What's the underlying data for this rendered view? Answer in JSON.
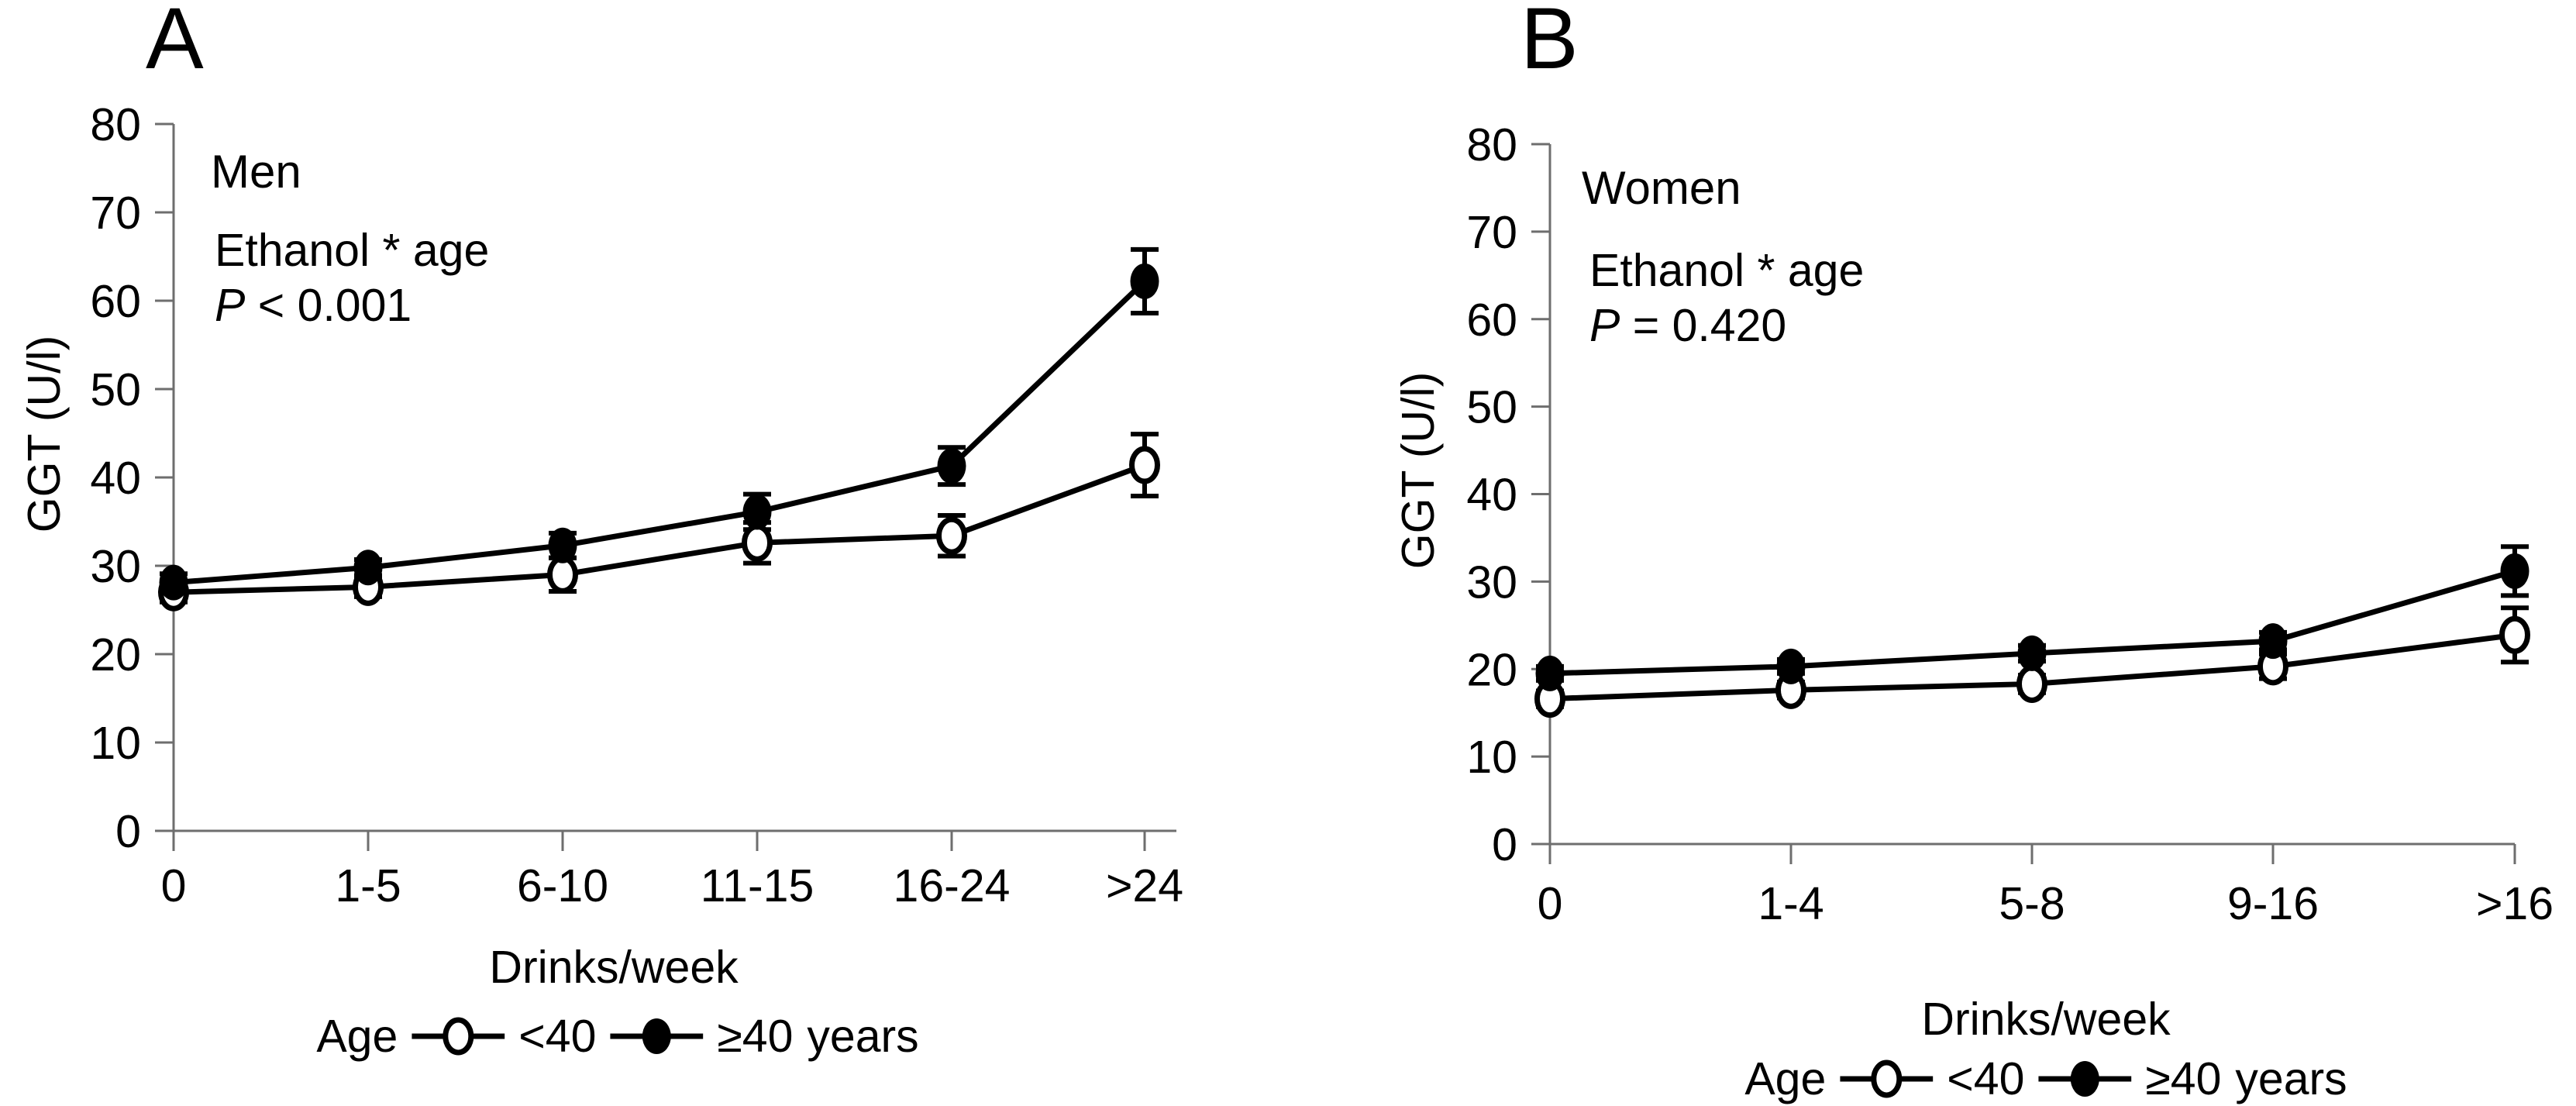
{
  "figure": {
    "background": "#ffffff",
    "axis_color": "#6e6e6e",
    "data_color": "#000000"
  },
  "legend": {
    "prefix": "Age",
    "item1_label": "<40",
    "item1_marker": "open-circle-icon",
    "item2_label": "≥40",
    "item2_marker": "filled-circle-icon",
    "suffix": "years"
  },
  "chart_data": [
    {
      "type": "line",
      "panel": "A",
      "group_label": "Men",
      "interaction_label": "Ethanol * age",
      "p_symbol": "P",
      "p_rest": " < 0.001",
      "xlabel": "Drinks/week",
      "ylabel": "GGT (U/l)",
      "ylim": [
        0,
        80
      ],
      "yticks": [
        0,
        10,
        20,
        30,
        40,
        50,
        60,
        70,
        80
      ],
      "grid": false,
      "legend_position": "bottom",
      "categories": [
        "0",
        "1-5",
        "6-10",
        "11-15",
        "16-24",
        ">24"
      ],
      "series": [
        {
          "name": "<40",
          "marker": "open-circle",
          "values": [
            27.0,
            27.6,
            29.0,
            32.6,
            33.4,
            41.4
          ],
          "errors": [
            1.1,
            1.1,
            1.9,
            2.3,
            2.3,
            3.5
          ]
        },
        {
          "name": "≥40",
          "marker": "filled-circle",
          "values": [
            28.1,
            29.8,
            32.3,
            36.1,
            41.3,
            62.2
          ],
          "errors": [
            1.0,
            0.9,
            1.4,
            2.0,
            2.1,
            3.6
          ]
        }
      ]
    },
    {
      "type": "line",
      "panel": "B",
      "group_label": "Women",
      "interaction_label": "Ethanol * age",
      "p_symbol": "P",
      "p_rest": " = 0.420",
      "xlabel": "Drinks/week",
      "ylabel": "GGT (U/l)",
      "ylim": [
        0,
        80
      ],
      "yticks": [
        0,
        10,
        20,
        30,
        40,
        50,
        60,
        70,
        80
      ],
      "grid": false,
      "legend_position": "bottom",
      "categories": [
        "0",
        "1-4",
        "5-8",
        "9-16",
        ">16"
      ],
      "series": [
        {
          "name": "<40",
          "marker": "open-circle",
          "values": [
            16.6,
            17.6,
            18.3,
            20.3,
            23.9
          ],
          "errors": [
            0.9,
            0.9,
            1.0,
            1.4,
            3.1
          ]
        },
        {
          "name": "≥40",
          "marker": "filled-circle",
          "values": [
            19.5,
            20.3,
            21.8,
            23.2,
            31.2
          ],
          "errors": [
            0.8,
            0.8,
            0.9,
            1.0,
            2.8
          ]
        }
      ]
    }
  ]
}
